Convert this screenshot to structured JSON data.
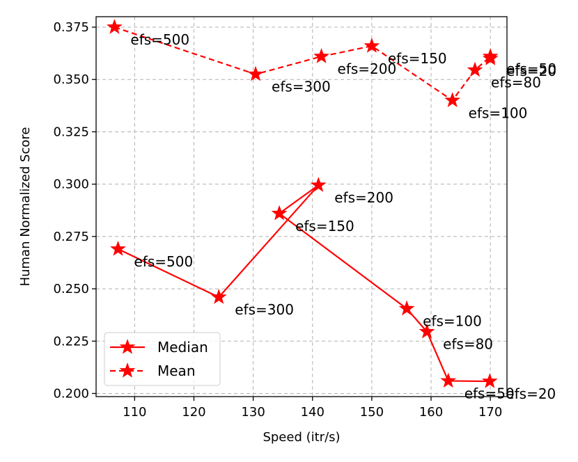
{
  "chart_data": {
    "type": "line",
    "xlabel": "Speed (itr/s)",
    "ylabel": "Human Normalized Score",
    "xlim": [
      103.5,
      172.8
    ],
    "ylim": [
      0.1985,
      0.38
    ],
    "x_ticks": [
      "110",
      "120",
      "130",
      "140",
      "150",
      "160",
      "170"
    ],
    "y_ticks": [
      "0.200",
      "0.225",
      "0.250",
      "0.275",
      "0.300",
      "0.325",
      "0.350",
      "0.375"
    ],
    "grid": true,
    "legend_position": "lower left",
    "color": "#ff0000",
    "series": [
      {
        "name": "Median",
        "line_style": "solid",
        "marker": "star",
        "points": [
          {
            "x": 107.2,
            "y": 0.269,
            "label": "efs=500"
          },
          {
            "x": 124.2,
            "y": 0.246,
            "label": "efs=300"
          },
          {
            "x": 141.0,
            "y": 0.2995,
            "label": "efs=200"
          },
          {
            "x": 134.4,
            "y": 0.286,
            "label": "efs=150"
          },
          {
            "x": 155.9,
            "y": 0.2405,
            "label": "efs=100"
          },
          {
            "x": 159.3,
            "y": 0.2295,
            "label": "efs=80"
          },
          {
            "x": 162.9,
            "y": 0.206,
            "label": "efs=50"
          },
          {
            "x": 169.9,
            "y": 0.2058,
            "label": "efs=20"
          }
        ]
      },
      {
        "name": "Mean",
        "line_style": "dashed",
        "marker": "star",
        "points": [
          {
            "x": 106.6,
            "y": 0.375,
            "label": "efs=500"
          },
          {
            "x": 130.4,
            "y": 0.3525,
            "label": "efs=300"
          },
          {
            "x": 141.5,
            "y": 0.361,
            "label": "efs=200"
          },
          {
            "x": 150.0,
            "y": 0.366,
            "label": "efs=150"
          },
          {
            "x": 163.6,
            "y": 0.34,
            "label": "efs=100"
          },
          {
            "x": 167.4,
            "y": 0.3545,
            "label": "efs=80"
          },
          {
            "x": 170.0,
            "y": 0.361,
            "label": "efs=50"
          },
          {
            "x": 170.0,
            "y": 0.36,
            "label": "efs=20"
          }
        ]
      }
    ]
  }
}
